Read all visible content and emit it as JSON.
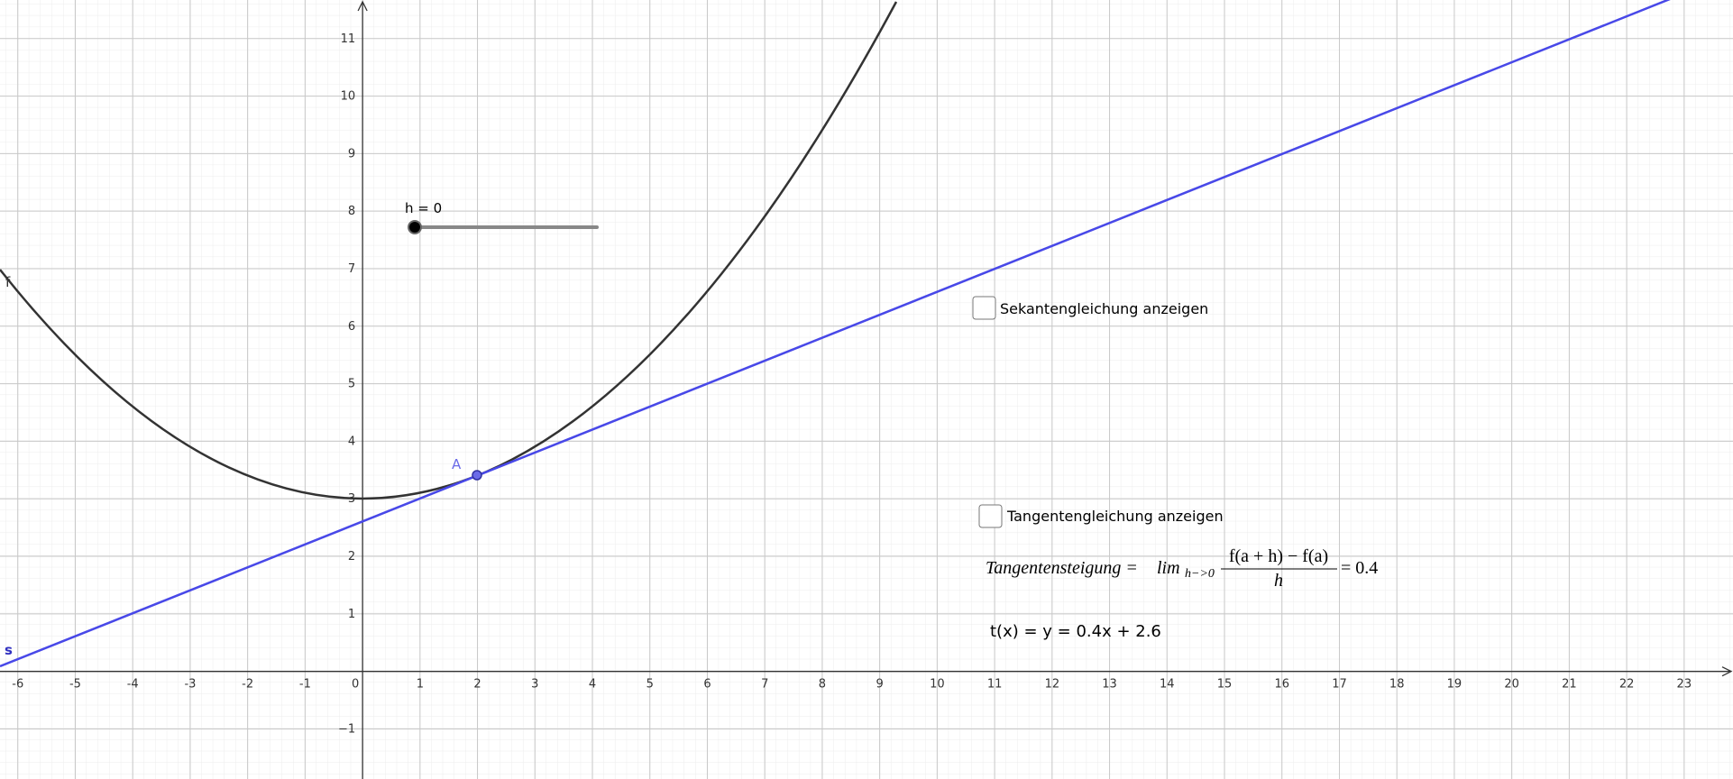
{
  "graph": {
    "xlim": [
      -6.31,
      23.85
    ],
    "ylim": [
      -1.87,
      11.67
    ],
    "xticks": [
      -6,
      -5,
      -4,
      -3,
      -2,
      -1,
      0,
      1,
      2,
      3,
      4,
      5,
      6,
      7,
      8,
      9,
      10,
      11,
      12,
      13,
      14,
      15,
      16,
      17,
      18,
      19,
      20,
      21,
      22,
      23
    ],
    "yticks": [
      {
        "value": -1,
        "label": "−1"
      },
      1,
      2,
      3,
      4,
      5,
      6,
      7,
      8,
      9,
      10,
      11
    ],
    "function_label": "f",
    "point_label": "A",
    "line_label": "s"
  },
  "slider": {
    "label": "h = 0"
  },
  "checkboxes": [
    "Sekantengleichung anzeigen",
    "Tangentengleichung anzeigen"
  ],
  "formula": {
    "lhs": "Tangentensteigung =",
    "lim": "lim",
    "sub": "h−>0",
    "numerator": "f(a + h) − f(a)",
    "denominator": "h",
    "result": "= 0.4"
  },
  "tangent_equation": "t(x) = y = 0.4x + 2.6"
}
